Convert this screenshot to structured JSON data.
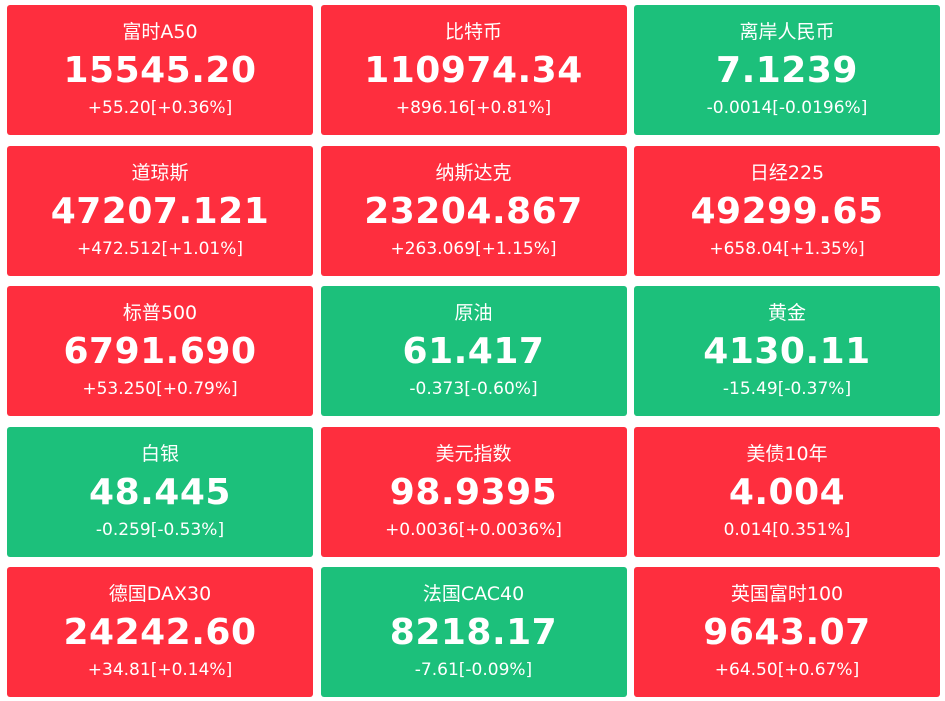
{
  "colors": {
    "up": "#fe2e3e",
    "down": "#1cc07b"
  },
  "tiles": [
    {
      "name": "富时A50",
      "price": "15545.20",
      "change": "+55.20[+0.36%]",
      "trend": "up"
    },
    {
      "name": "比特币",
      "price": "110974.34",
      "change": "+896.16[+0.81%]",
      "trend": "up"
    },
    {
      "name": "离岸人民币",
      "price": "7.1239",
      "change": "-0.0014[-0.0196%]",
      "trend": "down"
    },
    {
      "name": "道琼斯",
      "price": "47207.121",
      "change": "+472.512[+1.01%]",
      "trend": "up"
    },
    {
      "name": "纳斯达克",
      "price": "23204.867",
      "change": "+263.069[+1.15%]",
      "trend": "up"
    },
    {
      "name": "日经225",
      "price": "49299.65",
      "change": "+658.04[+1.35%]",
      "trend": "up"
    },
    {
      "name": "标普500",
      "price": "6791.690",
      "change": "+53.250[+0.79%]",
      "trend": "up"
    },
    {
      "name": "原油",
      "price": "61.417",
      "change": "-0.373[-0.60%]",
      "trend": "down"
    },
    {
      "name": "黄金",
      "price": "4130.11",
      "change": "-15.49[-0.37%]",
      "trend": "down"
    },
    {
      "name": "白银",
      "price": "48.445",
      "change": "-0.259[-0.53%]",
      "trend": "down"
    },
    {
      "name": "美元指数",
      "price": "98.9395",
      "change": "+0.0036[+0.0036%]",
      "trend": "up"
    },
    {
      "name": "美债10年",
      "price": "4.004",
      "change": "0.014[0.351%]",
      "trend": "up"
    },
    {
      "name": "德国DAX30",
      "price": "24242.60",
      "change": "+34.81[+0.14%]",
      "trend": "up"
    },
    {
      "name": "法国CAC40",
      "price": "8218.17",
      "change": "-7.61[-0.09%]",
      "trend": "down"
    },
    {
      "name": "英国富时100",
      "price": "9643.07",
      "change": "+64.50[+0.67%]",
      "trend": "up"
    }
  ]
}
